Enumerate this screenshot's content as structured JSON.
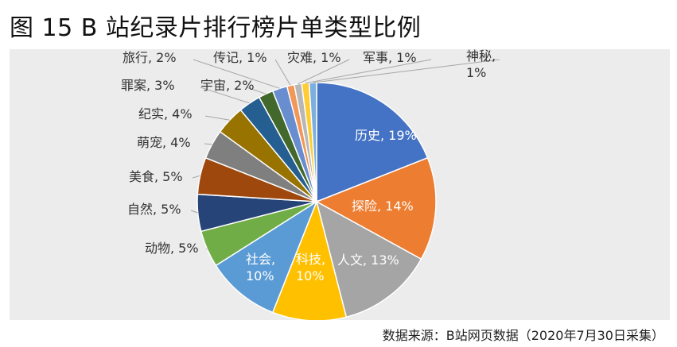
{
  "figure": {
    "title": "图 15 B 站纪录片排行榜片单类型比例",
    "source": "数据来源：B站网页数据（2020年7月30日采集）"
  },
  "chart_data": {
    "type": "pie",
    "title": "图 15 B 站纪录片排行榜片单类型比例",
    "start": "12 o'clock, clockwise",
    "slices": [
      {
        "name": "历史",
        "value": 19,
        "label": "历史, 19%",
        "color": "#4472c4",
        "label_pos": "inside",
        "text_color": "#ffffff"
      },
      {
        "name": "探险",
        "value": 14,
        "label": "探险, 14%",
        "color": "#ed7d31",
        "label_pos": "inside",
        "text_color": "#ffffff"
      },
      {
        "name": "人文",
        "value": 13,
        "label": "人文, 13%",
        "color": "#a5a5a5",
        "label_pos": "inside",
        "text_color": "#ffffff"
      },
      {
        "name": "科技",
        "value": 10,
        "label": "科技,\n10%",
        "color": "#ffc000",
        "label_pos": "inside",
        "text_color": "#ffffff"
      },
      {
        "name": "社会",
        "value": 10,
        "label": "社会,\n10%",
        "color": "#5b9bd5",
        "label_pos": "inside",
        "text_color": "#ffffff"
      },
      {
        "name": "动物",
        "value": 5,
        "label": "动物, 5%",
        "color": "#70ad47",
        "label_pos": "outside",
        "text_color": "#333333"
      },
      {
        "name": "自然",
        "value": 5,
        "label": "自然, 5%",
        "color": "#264478",
        "label_pos": "outside",
        "text_color": "#333333"
      },
      {
        "name": "美食",
        "value": 5,
        "label": "美食, 5%",
        "color": "#9e480e",
        "label_pos": "outside",
        "text_color": "#333333"
      },
      {
        "name": "萌宠",
        "value": 4,
        "label": "萌宠, 4%",
        "color": "#7f7f7f",
        "label_pos": "outside",
        "text_color": "#333333"
      },
      {
        "name": "纪实",
        "value": 4,
        "label": "纪实, 4%",
        "color": "#997300",
        "label_pos": "outside",
        "text_color": "#333333"
      },
      {
        "name": "罪案",
        "value": 3,
        "label": "罪案, 3%",
        "color": "#255e91",
        "label_pos": "outside",
        "text_color": "#333333"
      },
      {
        "name": "宇宙",
        "value": 2,
        "label": "宇宙, 2%",
        "color": "#43682b",
        "label_pos": "outside",
        "text_color": "#333333"
      },
      {
        "name": "旅行",
        "value": 2,
        "label": "旅行, 2%",
        "color": "#698ed0",
        "label_pos": "outside",
        "text_color": "#333333"
      },
      {
        "name": "传记",
        "value": 1,
        "label": "传记, 1%",
        "color": "#f1975a",
        "label_pos": "outside",
        "text_color": "#333333"
      },
      {
        "name": "灾难",
        "value": 1,
        "label": "灾难, 1%",
        "color": "#b7b7b7",
        "label_pos": "outside",
        "text_color": "#333333"
      },
      {
        "name": "军事",
        "value": 1,
        "label": "军事, 1%",
        "color": "#ffcd33",
        "label_pos": "outside",
        "text_color": "#333333"
      },
      {
        "name": "神秘",
        "value": 1,
        "label": "神秘,\n1%",
        "color": "#7cafdd",
        "label_pos": "outside",
        "text_color": "#333333"
      }
    ],
    "legend": "none"
  }
}
